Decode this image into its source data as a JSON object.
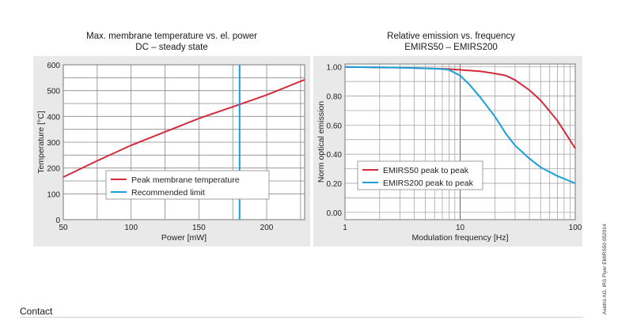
{
  "chart_data": [
    {
      "type": "line",
      "title": "Max. membrane temperature vs. el. power",
      "subtitle": "DC – steady state",
      "xlabel": "Power [mW]",
      "ylabel": "Temperature [°C]",
      "xlim": [
        50,
        228
      ],
      "ylim": [
        0,
        600
      ],
      "xticks": [
        "50",
        "100",
        "150",
        "200"
      ],
      "yticks": [
        "0",
        "100",
        "200",
        "300",
        "400",
        "500",
        "600"
      ],
      "grid": true,
      "legend_position": "bottom-center",
      "series": [
        {
          "name": "Peak membrane temperature",
          "color": "#d42a3a",
          "x": [
            50,
            75,
            100,
            125,
            150,
            175,
            200,
            228
          ],
          "y": [
            165,
            228,
            288,
            340,
            392,
            437,
            483,
            542
          ]
        },
        {
          "name": "Recommended limit",
          "color": "#19a0da",
          "x": [
            180,
            180
          ],
          "y": [
            0,
            600
          ]
        }
      ]
    },
    {
      "type": "line",
      "title": "Relative emission vs. frequency",
      "subtitle": "EMIRS50 – EMIRS200",
      "xlabel": "Modulation frequency  [Hz]",
      "ylabel": "Norm optical emission",
      "xscale": "log",
      "xlim": [
        1,
        100
      ],
      "ylim": [
        0,
        1.0
      ],
      "xticks": [
        "1",
        "10",
        "100"
      ],
      "yticks": [
        "0.00",
        "0.20",
        "0.40",
        "0.60",
        "0.80",
        "1.00"
      ],
      "grid": true,
      "legend_position": "bottom-left",
      "series": [
        {
          "name": "EMIRS50 peak to peak",
          "color": "#d42a3a",
          "x": [
            1,
            3,
            5,
            8,
            10,
            15,
            20,
            25,
            30,
            40,
            50,
            70,
            100
          ],
          "y": [
            1.0,
            0.995,
            0.99,
            0.985,
            0.98,
            0.97,
            0.955,
            0.94,
            0.91,
            0.84,
            0.77,
            0.63,
            0.44
          ]
        },
        {
          "name": "EMIRS200 peak to peak",
          "color": "#19a0da",
          "x": [
            1,
            3,
            5,
            7,
            8,
            10,
            12,
            15,
            20,
            25,
            30,
            40,
            50,
            70,
            100
          ],
          "y": [
            1.0,
            0.995,
            0.99,
            0.985,
            0.98,
            0.94,
            0.88,
            0.79,
            0.66,
            0.54,
            0.46,
            0.37,
            0.31,
            0.25,
            0.2
          ]
        }
      ]
    }
  ],
  "side_note": "Axetris AG, IRS Flyer EMIRS50 052014",
  "footer": {
    "contact_label": "Contact"
  }
}
